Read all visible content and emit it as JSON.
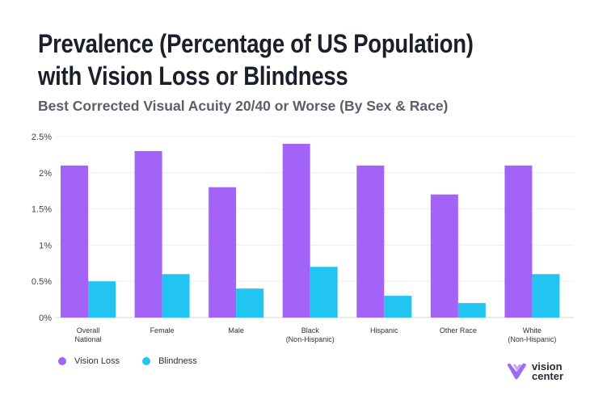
{
  "header": {
    "title": "Prevalence (Percentage of US Population) with Vision Loss or Blindness",
    "subtitle": "Best Corrected Visual Acuity 20/40 or Worse (By Sex &  Race)"
  },
  "logo": {
    "line1": "vision",
    "line2": "center",
    "accent": "#9b6cf5"
  },
  "chart_data": {
    "type": "bar",
    "title": "Prevalence (Percentage of US Population) with Vision Loss or Blindness",
    "subtitle": "Best Corrected Visual Acuity 20/40 or Worse (By Sex &  Race)",
    "categories": [
      [
        "Overall",
        "National"
      ],
      [
        "Female"
      ],
      [
        "Male"
      ],
      [
        "Black",
        "(Non-Hispanic)"
      ],
      [
        "Hispanic"
      ],
      [
        "Other Race"
      ],
      [
        "White",
        "(Non-Hispanic)"
      ]
    ],
    "series": [
      {
        "name": "Vision Loss",
        "color": "#a463f7",
        "values": [
          2.1,
          2.3,
          1.8,
          2.4,
          2.1,
          1.7,
          2.1
        ]
      },
      {
        "name": "Blindness",
        "color": "#22c4f2",
        "values": [
          0.5,
          0.6,
          0.4,
          0.7,
          0.3,
          0.2,
          0.6
        ]
      }
    ],
    "y_ticks": [
      "0%",
      "0.5%",
      "1%",
      "1.5%",
      "2%",
      "2.5%"
    ],
    "ylim": [
      0,
      2.5
    ],
    "grid": true,
    "legend_position": "bottom-left"
  }
}
